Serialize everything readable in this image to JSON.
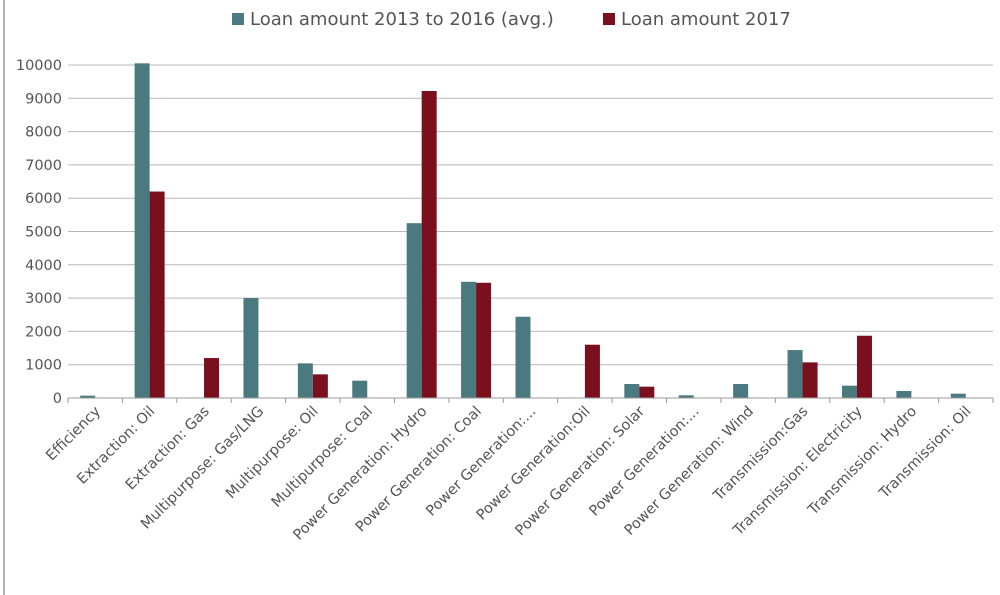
{
  "chart_data": {
    "type": "bar",
    "categories": [
      "Efficiency",
      "Extraction: Oil",
      "Extraction: Gas",
      "Multipurpose: Gas/LNG",
      "Multipurpose: Oil",
      "Multipurpose: Coal",
      "Power Generation: Hydro",
      "Power Generation: Coal",
      "Power Generation:...",
      "Power Generation:Oil",
      "Power Generation: Solar",
      "Power Generation:...",
      "Power Generation: Wind",
      "Transmission:Gas",
      "Transmission: Electricity",
      "Transmission: Hydro",
      "Transmission: Oil"
    ],
    "series": [
      {
        "name": "Loan amount 2013 to 2016 (avg.)",
        "color": "#4a7a7f",
        "values": [
          70,
          10050,
          0,
          3000,
          1040,
          520,
          5250,
          3490,
          2440,
          0,
          420,
          80,
          420,
          1440,
          370,
          210,
          130
        ]
      },
      {
        "name": "Loan amount 2017",
        "color": "#7a0f1e",
        "values": [
          0,
          6200,
          1200,
          0,
          710,
          0,
          9220,
          3460,
          0,
          1600,
          340,
          0,
          0,
          1070,
          1870,
          0,
          0
        ]
      }
    ],
    "yticks": [
      0,
      1000,
      2000,
      3000,
      4000,
      5000,
      6000,
      7000,
      8000,
      9000,
      10000
    ],
    "ylim": [
      0,
      10000
    ],
    "grid": true,
    "legend_position": "top-center",
    "title": "",
    "xlabel": "",
    "ylabel": ""
  }
}
